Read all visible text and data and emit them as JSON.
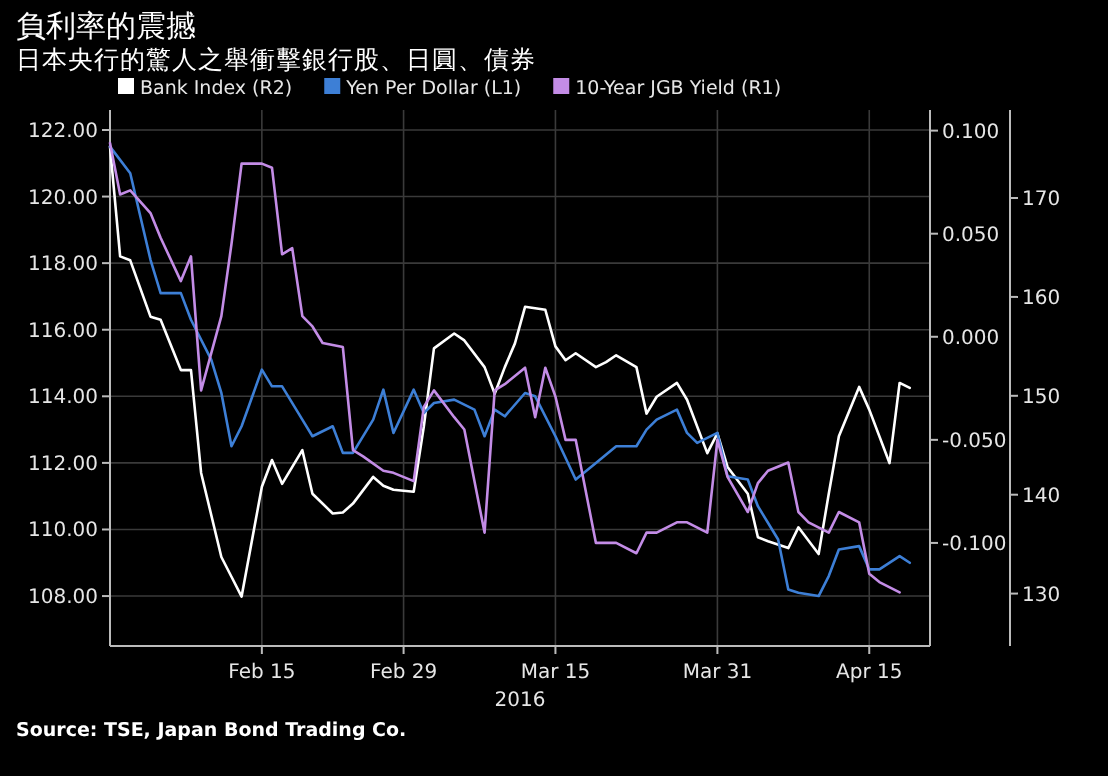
{
  "chart_data": {
    "type": "line",
    "title": "負利率的震撼",
    "subtitle": "日本央行的驚人之舉衝擊銀行股、日圓、債券",
    "xlabel": "2016",
    "annotations": [
      "Source: TSE, Japan Bond Trading Co."
    ],
    "legend": "top",
    "grid": true,
    "xlim": [
      "2016-01-31",
      "2016-04-21"
    ],
    "xticks": [
      {
        "value": "2016-02-15",
        "label": "Feb 15"
      },
      {
        "value": "2016-02-29",
        "label": "Feb 29"
      },
      {
        "value": "2016-03-15",
        "label": "Mar 15"
      },
      {
        "value": "2016-03-31",
        "label": "Mar 31"
      },
      {
        "value": "2016-04-15",
        "label": "Apr 15"
      }
    ],
    "ylim": [
      106.5,
      122.6
    ],
    "yticks": [
      {
        "value": 108,
        "label": "108.00"
      },
      {
        "value": 110,
        "label": "110.00"
      },
      {
        "value": 112,
        "label": "112.00"
      },
      {
        "value": 114,
        "label": "114.00"
      },
      {
        "value": 116,
        "label": "116.00"
      },
      {
        "value": 118,
        "label": "118.00"
      },
      {
        "value": 120,
        "label": "120.00"
      },
      {
        "value": 122,
        "label": "122.00"
      }
    ],
    "y2lim": [
      -0.15,
      0.11
    ],
    "y2ticks": [
      {
        "value": -0.1,
        "label": "-0.100"
      },
      {
        "value": -0.05,
        "label": "-0.050"
      },
      {
        "value": 0,
        "label": "0.000"
      },
      {
        "value": 0.05,
        "label": "0.050"
      },
      {
        "value": 0.1,
        "label": "0.100"
      }
    ],
    "y3lim": [
      124.7,
      178.9
    ],
    "y3ticks": [
      130,
      140,
      150,
      160,
      170
    ],
    "series": [
      {
        "name": "Bank Index (R2)",
        "color": "#ffffff",
        "axis": "y3",
        "x": [
          "2016-01-31",
          "2016-02-01",
          "2016-02-02",
          "2016-02-04",
          "2016-02-05",
          "2016-02-07",
          "2016-02-08",
          "2016-02-09",
          "2016-02-11",
          "2016-02-12",
          "2016-02-13",
          "2016-02-15",
          "2016-02-16",
          "2016-02-17",
          "2016-02-19",
          "2016-02-20",
          "2016-02-22",
          "2016-02-23",
          "2016-02-24",
          "2016-02-26",
          "2016-02-27",
          "2016-02-28",
          "2016-03-01",
          "2016-03-02",
          "2016-03-03",
          "2016-03-05",
          "2016-03-06",
          "2016-03-08",
          "2016-03-09",
          "2016-03-10",
          "2016-03-11",
          "2016-03-12",
          "2016-03-14",
          "2016-03-15",
          "2016-03-16",
          "2016-03-17",
          "2016-03-19",
          "2016-03-20",
          "2016-03-21",
          "2016-03-23",
          "2016-03-24",
          "2016-03-25",
          "2016-03-27",
          "2016-03-28",
          "2016-03-30",
          "2016-03-31",
          "2016-04-01",
          "2016-04-03",
          "2016-04-04",
          "2016-04-05",
          "2016-04-07",
          "2016-04-08",
          "2016-04-10",
          "2016-04-11",
          "2016-04-12",
          "2016-04-14",
          "2016-04-15",
          "2016-04-17",
          "2016-04-18",
          "2016-04-19"
        ],
        "values": [
          175.2,
          164.1,
          163.7,
          158.0,
          157.7,
          152.6,
          152.6,
          142.2,
          133.7,
          131.7,
          129.7,
          140.8,
          143.5,
          141.1,
          144.5,
          140.1,
          138.1,
          138.2,
          139.1,
          141.8,
          140.9,
          140.5,
          140.3,
          146.9,
          154.8,
          156.3,
          155.6,
          152.9,
          150.2,
          152.9,
          155.3,
          159.0,
          158.7,
          155.0,
          153.6,
          154.3,
          152.9,
          153.4,
          154.1,
          152.9,
          148.2,
          149.9,
          151.3,
          149.6,
          144.2,
          146.2,
          142.8,
          140.1,
          135.7,
          135.3,
          134.6,
          136.7,
          134.0,
          140.1,
          145.9,
          150.9,
          148.6,
          143.2,
          151.3,
          150.8
        ]
      },
      {
        "name": "Yen Per Dollar (L1)",
        "color": "#3d7fd6",
        "axis": "y",
        "x": [
          "2016-01-31",
          "2016-02-02",
          "2016-02-04",
          "2016-02-05",
          "2016-02-07",
          "2016-02-08",
          "2016-02-10",
          "2016-02-11",
          "2016-02-12",
          "2016-02-13",
          "2016-02-15",
          "2016-02-16",
          "2016-02-17",
          "2016-02-19",
          "2016-02-20",
          "2016-02-22",
          "2016-02-23",
          "2016-02-24",
          "2016-02-26",
          "2016-02-27",
          "2016-02-28",
          "2016-03-01",
          "2016-03-02",
          "2016-03-03",
          "2016-03-05",
          "2016-03-07",
          "2016-03-08",
          "2016-03-09",
          "2016-03-10",
          "2016-03-12",
          "2016-03-13",
          "2016-03-15",
          "2016-03-17",
          "2016-03-19",
          "2016-03-21",
          "2016-03-23",
          "2016-03-24",
          "2016-03-25",
          "2016-03-27",
          "2016-03-28",
          "2016-03-29",
          "2016-03-31",
          "2016-04-01",
          "2016-04-03",
          "2016-04-04",
          "2016-04-06",
          "2016-04-07",
          "2016-04-08",
          "2016-04-10",
          "2016-04-11",
          "2016-04-12",
          "2016-04-14",
          "2016-04-15",
          "2016-04-16",
          "2016-04-18",
          "2016-04-19"
        ],
        "values": [
          121.5,
          120.7,
          118.1,
          117.1,
          117.1,
          116.3,
          115.1,
          114.1,
          112.5,
          113.1,
          114.8,
          114.3,
          114.3,
          113.3,
          112.8,
          113.1,
          112.3,
          112.3,
          113.3,
          114.2,
          112.9,
          114.2,
          113.5,
          113.8,
          113.9,
          113.6,
          112.8,
          113.6,
          113.4,
          114.1,
          114.0,
          112.8,
          111.5,
          112.0,
          112.5,
          112.5,
          113.0,
          113.3,
          113.6,
          112.9,
          112.6,
          112.9,
          111.6,
          111.5,
          110.7,
          109.7,
          108.2,
          108.1,
          108.0,
          108.6,
          109.4,
          109.5,
          108.8,
          108.8,
          109.2,
          109.0
        ]
      },
      {
        "name": "10-Year JGB Yield (R1)",
        "color": "#c38ce6",
        "axis": "y2",
        "x": [
          "2016-01-31",
          "2016-02-01",
          "2016-02-02",
          "2016-02-04",
          "2016-02-05",
          "2016-02-07",
          "2016-02-08",
          "2016-02-09",
          "2016-02-11",
          "2016-02-12",
          "2016-02-13",
          "2016-02-15",
          "2016-02-16",
          "2016-02-17",
          "2016-02-18",
          "2016-02-19",
          "2016-02-20",
          "2016-02-21",
          "2016-02-23",
          "2016-02-24",
          "2016-02-25",
          "2016-02-27",
          "2016-02-28",
          "2016-03-01",
          "2016-03-02",
          "2016-03-03",
          "2016-03-05",
          "2016-03-06",
          "2016-03-08",
          "2016-03-09",
          "2016-03-10",
          "2016-03-12",
          "2016-03-13",
          "2016-03-14",
          "2016-03-15",
          "2016-03-16",
          "2016-03-17",
          "2016-03-19",
          "2016-03-20",
          "2016-03-21",
          "2016-03-23",
          "2016-03-24",
          "2016-03-25",
          "2016-03-27",
          "2016-03-28",
          "2016-03-30",
          "2016-03-31",
          "2016-04-01",
          "2016-04-03",
          "2016-04-04",
          "2016-04-05",
          "2016-04-07",
          "2016-04-08",
          "2016-04-09",
          "2016-04-11",
          "2016-04-12",
          "2016-04-14",
          "2016-04-15",
          "2016-04-16",
          "2016-04-18"
        ],
        "values": [
          0.094,
          0.069,
          0.071,
          0.06,
          0.048,
          0.027,
          0.039,
          -0.026,
          0.01,
          0.045,
          0.084,
          0.084,
          0.082,
          0.04,
          0.043,
          0.01,
          0.005,
          -0.003,
          -0.005,
          -0.055,
          -0.058,
          -0.065,
          -0.066,
          -0.07,
          -0.034,
          -0.026,
          -0.039,
          -0.045,
          -0.095,
          -0.026,
          -0.023,
          -0.015,
          -0.039,
          -0.015,
          -0.029,
          -0.05,
          -0.05,
          -0.1,
          -0.1,
          -0.1,
          -0.105,
          -0.095,
          -0.095,
          -0.09,
          -0.09,
          -0.095,
          -0.05,
          -0.068,
          -0.085,
          -0.071,
          -0.065,
          -0.061,
          -0.085,
          -0.09,
          -0.095,
          -0.085,
          -0.09,
          -0.115,
          -0.119,
          -0.124
        ]
      }
    ]
  }
}
